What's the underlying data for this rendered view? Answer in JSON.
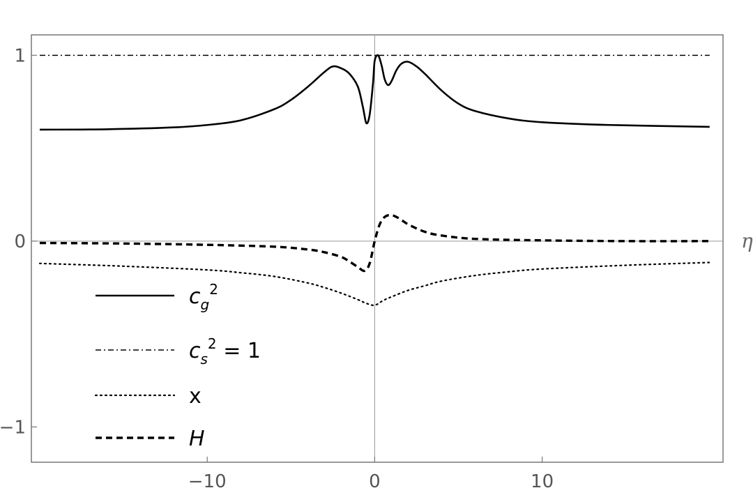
{
  "chart_data": {
    "type": "line",
    "xlabel": "η",
    "ylabel": "",
    "xlim": [
      -20.5,
      20.8
    ],
    "ylim": [
      -1.19,
      1.11
    ],
    "grid": false,
    "x_ticks": [
      {
        "value": -10,
        "label": "−10"
      },
      {
        "value": 0,
        "label": "0"
      },
      {
        "value": 10,
        "label": "10"
      }
    ],
    "y_ticks": [
      {
        "value": 1,
        "label": "1"
      },
      {
        "value": 0,
        "label": "0"
      },
      {
        "value": -1,
        "label": "−1"
      }
    ],
    "legend_position": "bottom-left",
    "legend": [
      {
        "series": "cg2",
        "base": "c",
        "sub": "g",
        "sup": "2",
        "tail": ""
      },
      {
        "series": "cs2",
        "base": "c",
        "sub": "s",
        "sup": "2",
        "tail": " = 1"
      },
      {
        "series": "x",
        "base": "",
        "sub": "",
        "sup": "",
        "tail": "x"
      },
      {
        "series": "H",
        "base": "H",
        "sub": "",
        "sup": "",
        "tail": ""
      }
    ],
    "series": [
      {
        "id": "cg2",
        "style": "solid",
        "x": [
          -20,
          -16,
          -12,
          -10,
          -8,
          -6,
          -5,
          -4,
          -3,
          -2.5,
          -2,
          -1.5,
          -1,
          -0.7,
          -0.5,
          -0.3,
          -0.1,
          0,
          0.2,
          0.4,
          0.6,
          0.8,
          1,
          1.3,
          1.6,
          2,
          2.5,
          3,
          4,
          5,
          6,
          8,
          10,
          14,
          20
        ],
        "y": [
          0.6,
          0.602,
          0.612,
          0.625,
          0.65,
          0.71,
          0.76,
          0.83,
          0.91,
          0.94,
          0.93,
          0.9,
          0.83,
          0.72,
          0.635,
          0.68,
          0.85,
          0.97,
          1.0,
          0.95,
          0.87,
          0.84,
          0.86,
          0.92,
          0.955,
          0.965,
          0.94,
          0.9,
          0.81,
          0.74,
          0.7,
          0.66,
          0.64,
          0.625,
          0.615
        ]
      },
      {
        "id": "cs2",
        "style": "dashdot",
        "x": [
          -20,
          20
        ],
        "y": [
          1,
          1
        ]
      },
      {
        "id": "x",
        "style": "dotted",
        "x": [
          -20,
          -15,
          -10,
          -8,
          -6,
          -4,
          -3,
          -2,
          -1,
          -0.5,
          0,
          0.5,
          1,
          2,
          3,
          4,
          6,
          8,
          10,
          15,
          20
        ],
        "y": [
          -0.12,
          -0.135,
          -0.155,
          -0.17,
          -0.19,
          -0.225,
          -0.25,
          -0.28,
          -0.315,
          -0.335,
          -0.345,
          -0.32,
          -0.3,
          -0.265,
          -0.24,
          -0.215,
          -0.185,
          -0.165,
          -0.15,
          -0.13,
          -0.115
        ]
      },
      {
        "id": "H",
        "style": "dashed",
        "x": [
          -20,
          -15,
          -10,
          -6,
          -4,
          -3,
          -2,
          -1.5,
          -1,
          -0.6,
          -0.3,
          0,
          0.3,
          0.6,
          1,
          1.5,
          2,
          3,
          4,
          6,
          10,
          15,
          20
        ],
        "y": [
          -0.01,
          -0.013,
          -0.02,
          -0.03,
          -0.045,
          -0.06,
          -0.085,
          -0.11,
          -0.14,
          -0.16,
          -0.12,
          0.0,
          0.09,
          0.13,
          0.14,
          0.12,
          0.09,
          0.05,
          0.03,
          0.012,
          0.004,
          0.0,
          0.0
        ]
      }
    ]
  }
}
